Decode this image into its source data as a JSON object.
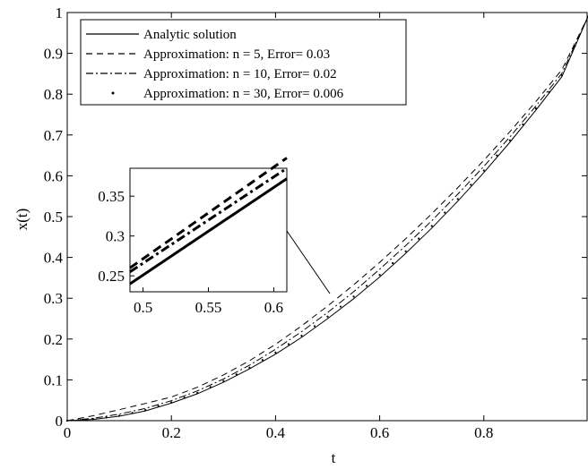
{
  "chart_data": {
    "type": "line",
    "xlabel": "t",
    "ylabel": "x(t)",
    "xlim": [
      0,
      1
    ],
    "ylim": [
      0,
      1
    ],
    "xticks": [
      "0",
      "0.2",
      "0.4",
      "0.6",
      "0.8"
    ],
    "yticks": [
      "0",
      "0.1",
      "0.2",
      "0.3",
      "0.4",
      "0.5",
      "0.6",
      "0.7",
      "0.8",
      "0.9",
      "1"
    ],
    "grid": false,
    "legend_position": "top-left",
    "x": [
      0,
      0.05,
      0.1,
      0.15,
      0.2,
      0.25,
      0.3,
      0.35,
      0.4,
      0.45,
      0.5,
      0.55,
      0.6,
      0.65,
      0.7,
      0.75,
      0.8,
      0.85,
      0.9,
      0.95,
      1.0
    ],
    "series": [
      {
        "name": "Analytic solution",
        "style": "solid",
        "values": [
          0,
          0.003,
          0.011,
          0.024,
          0.043,
          0.066,
          0.094,
          0.127,
          0.163,
          0.204,
          0.25,
          0.299,
          0.352,
          0.41,
          0.472,
          0.538,
          0.608,
          0.682,
          0.761,
          0.843,
          0.99
        ]
      },
      {
        "name": "Approximation: n = 5, Error= 0.03",
        "style": "dashed",
        "values": [
          0,
          0.012,
          0.027,
          0.042,
          0.058,
          0.082,
          0.112,
          0.147,
          0.187,
          0.232,
          0.281,
          0.333,
          0.388,
          0.446,
          0.507,
          0.571,
          0.638,
          0.708,
          0.782,
          0.86,
          0.99
        ]
      },
      {
        "name": "Approximation: n = 10, Error= 0.02",
        "style": "dashdot",
        "values": [
          0,
          0.006,
          0.016,
          0.03,
          0.049,
          0.073,
          0.102,
          0.136,
          0.175,
          0.218,
          0.265,
          0.316,
          0.371,
          0.429,
          0.49,
          0.555,
          0.623,
          0.695,
          0.771,
          0.851,
          0.99
        ]
      },
      {
        "name": "Approximation: n = 30, Error= 0.006",
        "style": "dotted",
        "values": [
          0,
          0.004,
          0.012,
          0.026,
          0.045,
          0.068,
          0.097,
          0.13,
          0.167,
          0.208,
          0.255,
          0.304,
          0.357,
          0.415,
          0.477,
          0.543,
          0.613,
          0.687,
          0.765,
          0.846,
          0.99
        ]
      }
    ],
    "inset": {
      "xlim": [
        0.49,
        0.61
      ],
      "ylim": [
        0.23,
        0.385
      ],
      "xticks": [
        "0.5",
        "0.55",
        "0.6"
      ],
      "yticks": [
        "0.25",
        "0.3",
        "0.35"
      ],
      "x": [
        0.49,
        0.61
      ],
      "series": [
        {
          "style": "solid",
          "values": [
            0.24,
            0.372
          ]
        },
        {
          "style": "dashed",
          "values": [
            0.26,
            0.398
          ]
        },
        {
          "style": "dashdot",
          "values": [
            0.255,
            0.385
          ]
        }
      ]
    }
  }
}
